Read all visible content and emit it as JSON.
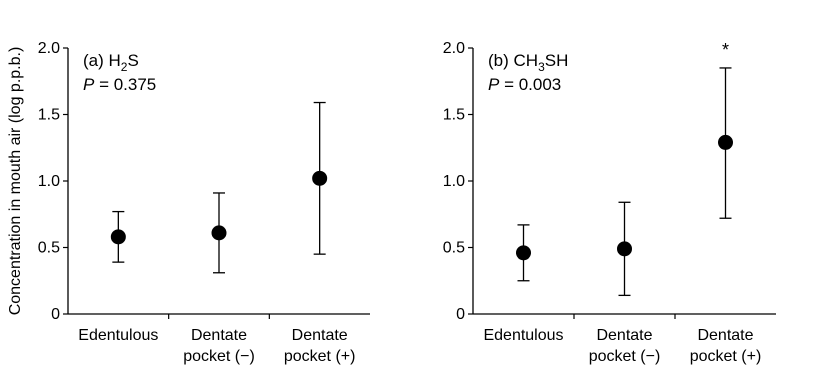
{
  "figure": {
    "ylabel": "Concentration in mouth air (log p.p.b.)"
  },
  "chart_data": [
    {
      "type": "scatter",
      "panel_label": "(a) H",
      "compound_sub": "2",
      "compound_rest": "S",
      "p_label": "P",
      "p_value": " = 0.375",
      "ylim": [
        0,
        2.0
      ],
      "yticks": [
        "0",
        "0.5",
        "1.0",
        "1.5",
        "2.0"
      ],
      "ytick_values": [
        0,
        0.5,
        1.0,
        1.5,
        2.0
      ],
      "categories": [
        [
          "Edentulous"
        ],
        [
          "Dentate",
          "pocket (−)"
        ],
        [
          "Dentate",
          "pocket (+)"
        ]
      ],
      "means": [
        0.58,
        0.61,
        1.02
      ],
      "lower": [
        0.39,
        0.31,
        0.45
      ],
      "upper": [
        0.77,
        0.91,
        1.59
      ],
      "significance": [
        "",
        "",
        ""
      ]
    },
    {
      "type": "scatter",
      "panel_label": "(b) CH",
      "compound_sub": "3",
      "compound_rest": "SH",
      "p_label": "P",
      "p_value": " = 0.003",
      "ylim": [
        0,
        2.0
      ],
      "yticks": [
        "0",
        "0.5",
        "1.0",
        "1.5",
        "2.0"
      ],
      "ytick_values": [
        0,
        0.5,
        1.0,
        1.5,
        2.0
      ],
      "categories": [
        [
          "Edentulous"
        ],
        [
          "Dentate",
          "pocket (−)"
        ],
        [
          "Dentate",
          "pocket (+)"
        ]
      ],
      "means": [
        0.46,
        0.49,
        1.29
      ],
      "lower": [
        0.25,
        0.14,
        0.72
      ],
      "upper": [
        0.67,
        0.84,
        1.85
      ],
      "significance": [
        "",
        "",
        "*"
      ]
    }
  ]
}
